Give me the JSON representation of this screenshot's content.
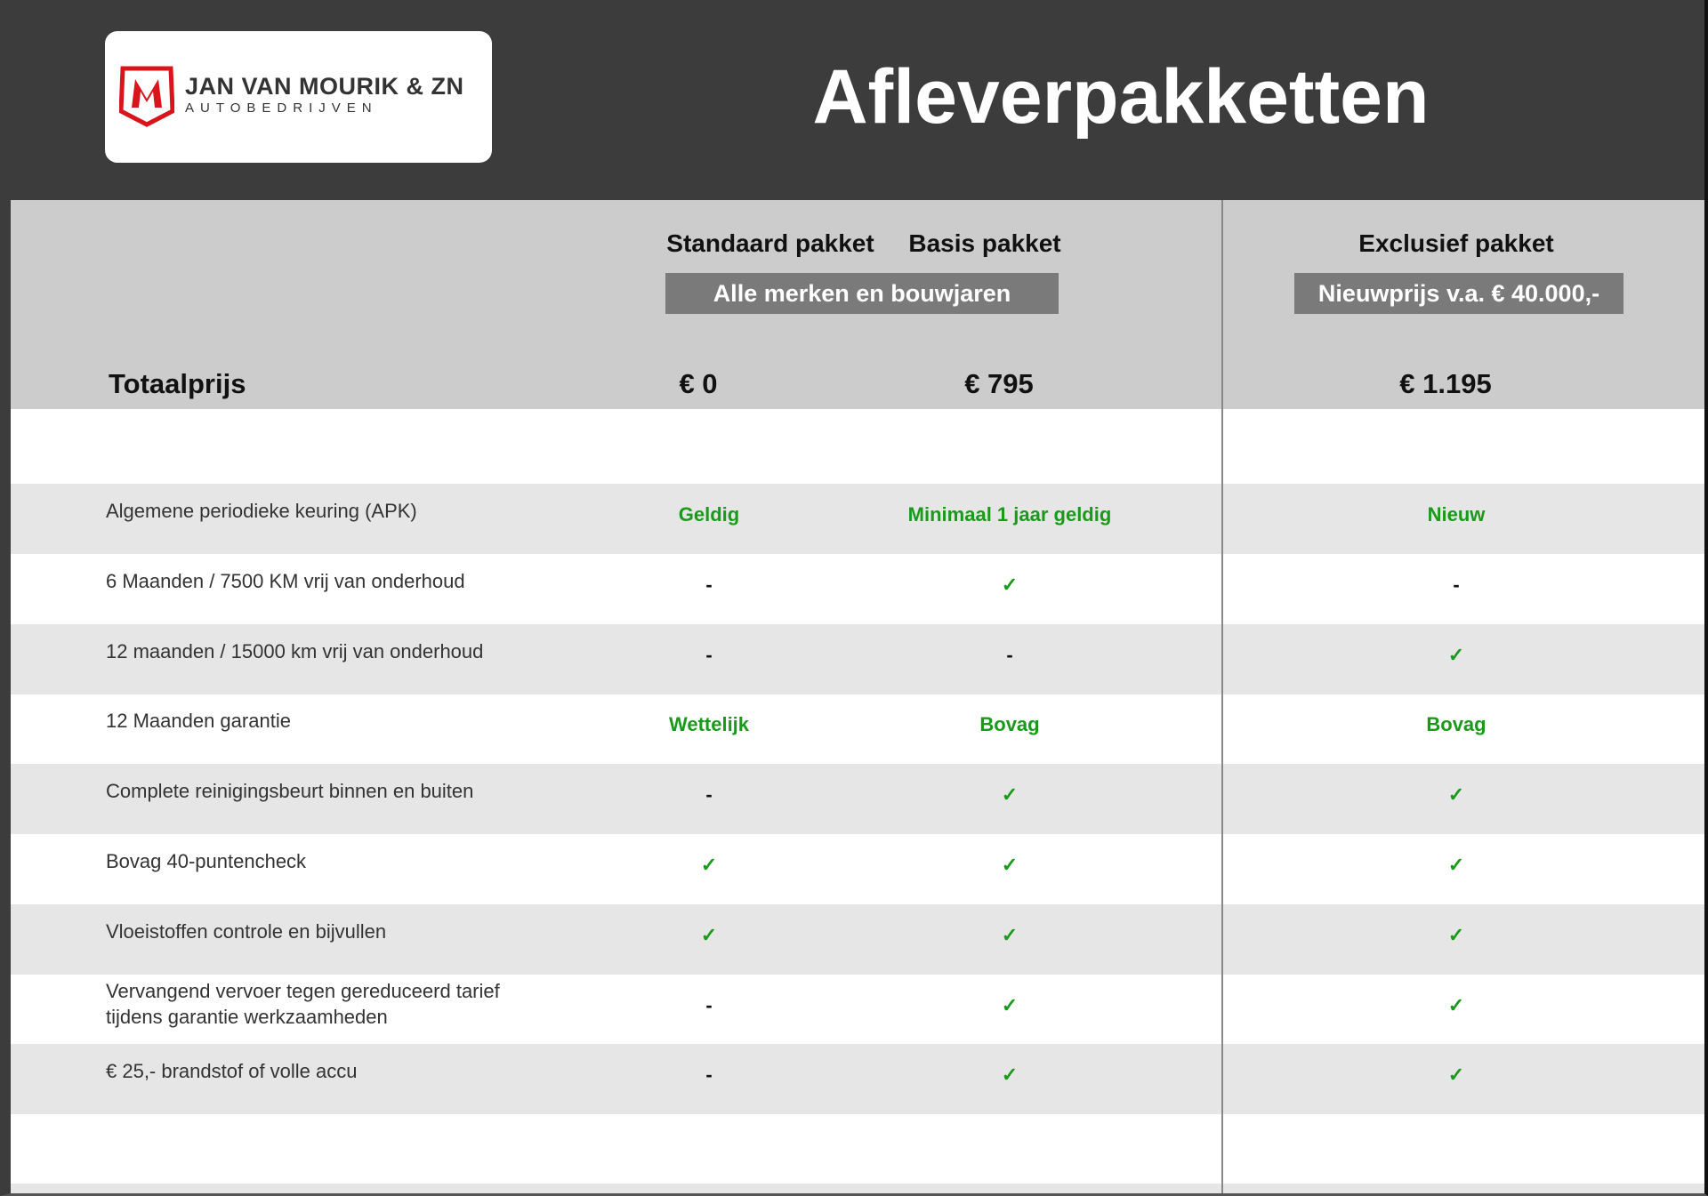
{
  "logo": {
    "name": "JAN VAN MOURIK & ZN",
    "subtitle": "AUTOBEDRIJVEN",
    "brand_color": "#d9141b"
  },
  "title": "Afleverpakketten",
  "columns": [
    {
      "name": "Standaard pakket",
      "price": "€ 0"
    },
    {
      "name": "Basis pakket",
      "price": "€ 795"
    },
    {
      "name": "Exclusief pakket",
      "price": "€ 1.195"
    }
  ],
  "tags": {
    "standard_basis": "Alle merken en bouwjaren",
    "exclusive": "Nieuwprijs v.a. € 40.000,-"
  },
  "total_label": "Totaalprijs",
  "accent_color": "#1a9a1a",
  "rows": [
    {
      "label": "Algemene periodieke keuring (APK)",
      "values": [
        "Geldig",
        "Minimaal 1 jaar geldig",
        "Nieuw"
      ]
    },
    {
      "label": "6 Maanden / 7500 KM vrij van onderhoud",
      "values": [
        "-",
        "✓",
        "-"
      ]
    },
    {
      "label": "12 maanden / 15000 km vrij van onderhoud",
      "values": [
        "-",
        "-",
        "✓"
      ]
    },
    {
      "label": "12 Maanden  garantie",
      "values": [
        "Wettelijk",
        "Bovag",
        "Bovag"
      ]
    },
    {
      "label": "Complete reinigingsbeurt binnen en buiten",
      "values": [
        "-",
        "✓",
        "✓"
      ]
    },
    {
      "label": "Bovag 40-puntencheck",
      "values": [
        "✓",
        "✓",
        "✓"
      ]
    },
    {
      "label": "Vloeistoffen controle en bijvullen",
      "values": [
        "✓",
        "✓",
        "✓"
      ]
    },
    {
      "label": "Vervangend vervoer tegen gereduceerd tarief\ntijdens garantie werkzaamheden",
      "values": [
        "-",
        "✓",
        "✓"
      ]
    },
    {
      "label": "€ 25,- brandstof of  volle accu",
      "values": [
        "-",
        "✓",
        "✓"
      ]
    }
  ]
}
